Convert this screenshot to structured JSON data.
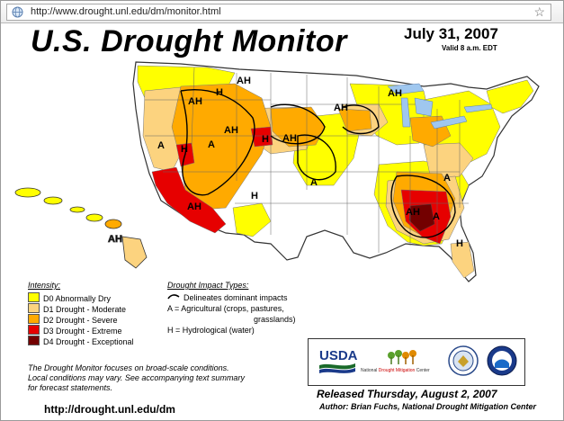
{
  "browser": {
    "url": "http://www.drought.unl.edu/dm/monitor.html",
    "icons": {
      "page": "globe-icon",
      "bookmark": "star-icon"
    }
  },
  "header": {
    "title": "U.S. Drought Monitor",
    "date": "July 31, 2007",
    "valid": "Valid 8 a.m. EDT"
  },
  "colors": {
    "D0": "#ffff00",
    "D1": "#fcd37f",
    "D2": "#ffaa00",
    "D3": "#e60000",
    "D4": "#730000",
    "water": "#9fc7ef"
  },
  "legend": {
    "intensity_header": "Intensity:",
    "levels": [
      {
        "label": "D0 Abnormally Dry",
        "color": "#ffff00"
      },
      {
        "label": "D1 Drought - Moderate",
        "color": "#fcd37f"
      },
      {
        "label": "D2 Drought - Severe",
        "color": "#ffaa00"
      },
      {
        "label": "D3 Drought - Extreme",
        "color": "#e60000"
      },
      {
        "label": "D4 Drought - Exceptional",
        "color": "#730000"
      }
    ],
    "impact_header": "Drought Impact Types:",
    "impacts": [
      "Delineates dominant impacts",
      "A = Agricultural (crops, pastures,",
      "grasslands)",
      "H = Hydrological (water)"
    ]
  },
  "map_labels": [
    "A",
    "AH",
    "H"
  ],
  "note": [
    "The Drought Monitor focuses on broad-scale conditions.",
    "Local conditions may vary. See accompanying text summary",
    "for forecast statements."
  ],
  "site": "http://drought.unl.edu/dm",
  "logos": {
    "usda": "USDA",
    "ndmc_prefix": "National",
    "ndmc_main": "Drought Mitigation",
    "ndmc_suffix": "Center"
  },
  "released": "Released Thursday, August 2, 2007",
  "author": "Author: Brian Fuchs, National Drought Mitigation Center"
}
